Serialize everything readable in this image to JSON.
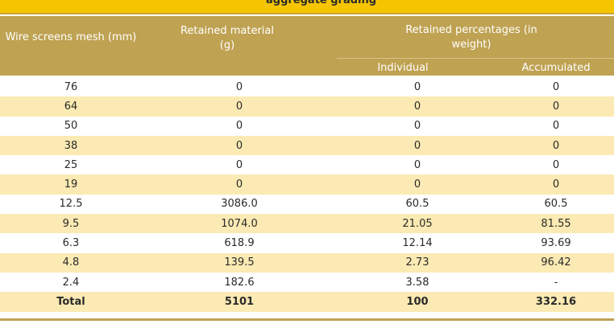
{
  "title": "aggregate grading",
  "headers": {
    "mesh": "Wire screens mesh (mm)",
    "retained": "Retained material (g)",
    "percentages": "Retained percentages (in weight)",
    "individual": "Individual",
    "accumulated": "Accumulated"
  },
  "rows": [
    {
      "mesh": "76",
      "retained": "0",
      "individual": "0",
      "accumulated": "0"
    },
    {
      "mesh": "64",
      "retained": "0",
      "individual": "0",
      "accumulated": "0"
    },
    {
      "mesh": "50",
      "retained": "0",
      "individual": "0",
      "accumulated": "0"
    },
    {
      "mesh": "38",
      "retained": "0",
      "individual": "0",
      "accumulated": "0"
    },
    {
      "mesh": "25",
      "retained": "0",
      "individual": "0",
      "accumulated": "0"
    },
    {
      "mesh": "19",
      "retained": "0",
      "individual": "0",
      "accumulated": "0"
    },
    {
      "mesh": "12.5",
      "retained": "3086.0",
      "individual": "60.5",
      "accumulated": "60.5"
    },
    {
      "mesh": "9.5",
      "retained": "1074.0",
      "individual": "21.05",
      "accumulated": "81.55"
    },
    {
      "mesh": "6.3",
      "retained": "618.9",
      "individual": "12.14",
      "accumulated": "93.69"
    },
    {
      "mesh": "4.8",
      "retained": "139.5",
      "individual": "2.73",
      "accumulated": "96.42"
    },
    {
      "mesh": "2.4",
      "retained": "182.6",
      "individual": "3.58",
      "accumulated": "-"
    }
  ],
  "total": {
    "label": "Total",
    "retained": "5101",
    "individual": "100",
    "accumulated": "332.16"
  },
  "colors": {
    "title_bar": "#f6c500",
    "header": "#bfa252",
    "shaded_row": "#fbeab3"
  }
}
